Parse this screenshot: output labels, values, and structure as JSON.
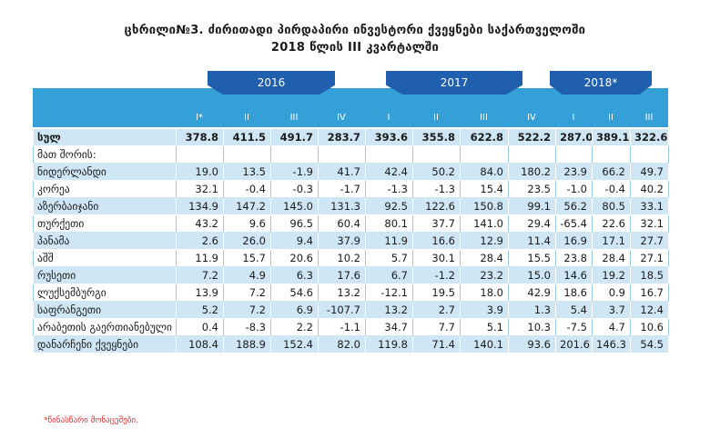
{
  "title_line1": "ცხრილი№3.  ძირითადი პირდაპირი ინვესტორი ქვეყნები საქართველოში",
  "title_line2": "2018 წლის III კვარტალში",
  "years": [
    "2016",
    "2017",
    "2018*"
  ],
  "quarters": [
    "I*",
    "II",
    "III",
    "IV",
    "I",
    "II",
    "III",
    "IV",
    "I",
    "II",
    "III"
  ],
  "rows": [
    {
      "label": "სულ",
      "values": [
        "378.8",
        "411.5",
        "491.7",
        "283.7",
        "393.6",
        "355.8",
        "622.8",
        "522.2",
        "287.0",
        "389.1",
        "322.6"
      ]
    },
    {
      "label": "მათ შორის:",
      "values": [
        "",
        "",
        "",
        "",
        "",
        "",
        "",
        "",
        "",
        "",
        ""
      ]
    },
    {
      "label": "ნიდერლანდი",
      "values": [
        "19.0",
        "13.5",
        "-1.9",
        "41.7",
        "42.4",
        "50.2",
        "84.0",
        "180.2",
        "23.9",
        "66.2",
        "49.7"
      ]
    },
    {
      "label": "კორეა",
      "values": [
        "32.1",
        "-0.4",
        "-0.3",
        "-1.7",
        "-1.3",
        "-1.3",
        "15.4",
        "23.5",
        "-1.0",
        "-0.4",
        "40.2"
      ]
    },
    {
      "label": "აზერბაიჯანი",
      "values": [
        "134.9",
        "147.2",
        "145.0",
        "131.3",
        "92.5",
        "122.6",
        "150.8",
        "99.1",
        "56.2",
        "80.5",
        "33.1"
      ]
    },
    {
      "label": "თურქეთი",
      "values": [
        "43.2",
        "9.6",
        "96.5",
        "60.4",
        "80.1",
        "37.7",
        "141.0",
        "29.4",
        "-65.4",
        "22.6",
        "32.1"
      ]
    },
    {
      "label": "პანამა",
      "values": [
        "2.6",
        "26.0",
        "9.4",
        "37.9",
        "11.9",
        "16.6",
        "12.9",
        "11.4",
        "16.9",
        "17.1",
        "27.7"
      ]
    },
    {
      "label": "აშშ",
      "values": [
        "11.9",
        "15.7",
        "20.6",
        "10.2",
        "5.7",
        "30.1",
        "28.4",
        "15.5",
        "23.8",
        "28.4",
        "27.1"
      ]
    },
    {
      "label": "რუსეთი",
      "values": [
        "7.2",
        "4.9",
        "6.3",
        "17.6",
        "6.7",
        "-1.2",
        "23.2",
        "15.0",
        "14.6",
        "19.2",
        "18.5"
      ]
    },
    {
      "label": "ლუქსემბურგი",
      "values": [
        "13.9",
        "7.2",
        "54.6",
        "13.2",
        "-12.1",
        "19.5",
        "18.0",
        "42.9",
        "18.6",
        "0.9",
        "16.7"
      ]
    },
    {
      "label": "საფრანგეთი",
      "values": [
        "5.2",
        "7.2",
        "6.9",
        "-107.7",
        "13.2",
        "2.7",
        "3.9",
        "1.3",
        "5.4",
        "3.7",
        "12.4"
      ]
    },
    {
      "label": "არაბეთის გაერთიანებული ემირატები",
      "values": [
        "0.4",
        "-8.3",
        "2.2",
        "-1.1",
        "34.7",
        "7.7",
        "5.1",
        "10.3",
        "-7.5",
        "4.7",
        "10.6"
      ]
    },
    {
      "label": "დანარჩენი ქვეყნები",
      "values": [
        "108.4",
        "188.9",
        "152.4",
        "82.0",
        "119.8",
        "71.4",
        "140.1",
        "93.6",
        "201.6",
        "146.3",
        "54.5"
      ]
    }
  ],
  "footnote": "*წინასწარი მონაცემები."
}
